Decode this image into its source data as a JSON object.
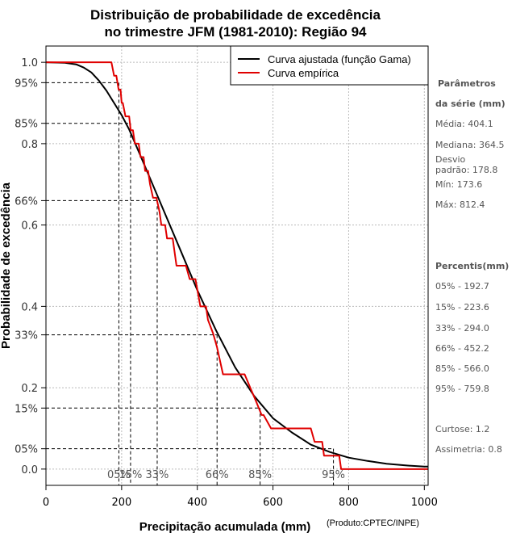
{
  "chart_data": {
    "type": "line",
    "title": "Distribuição de probabilidade de excedência",
    "subtitle": "no trimestre JFM (1981-2010): Região 94",
    "xlabel": "Precipitação acumulada (mm)",
    "ylabel": "Probabilidade de excedência",
    "xlim": [
      0,
      1010
    ],
    "ylim": [
      -0.04,
      1.04
    ],
    "x_ticks": [
      0,
      200,
      400,
      600,
      800,
      1000
    ],
    "x_tick_labels": [
      "0",
      "200",
      "400",
      "600",
      "800",
      "1000"
    ],
    "y_ticks": [
      1.0,
      0.95,
      0.85,
      0.8,
      0.66,
      0.6,
      0.4,
      0.33,
      0.2,
      0.15,
      0.05,
      0.0
    ],
    "y_tick_labels": [
      "1.0",
      "95%",
      "85%",
      "0.8",
      "66%",
      "0.6",
      "0.4",
      "33%",
      "0.2",
      "15%",
      "05%",
      "0.0"
    ],
    "grid": true,
    "legend_position": "top-right",
    "legend": [
      "Curva ajustada (função Gama)",
      "Curva empírica"
    ],
    "series": [
      {
        "name": "Curva ajustada (função Gama)",
        "color": "#000000",
        "x": [
          0,
          50,
          80,
          100,
          120,
          140,
          160,
          180,
          200,
          220,
          250,
          300,
          350,
          400,
          450,
          500,
          550,
          600,
          650,
          700,
          750,
          800,
          850,
          900,
          950,
          1000,
          1010
        ],
        "y": [
          1.0,
          0.999,
          0.995,
          0.987,
          0.975,
          0.955,
          0.93,
          0.9,
          0.87,
          0.835,
          0.77,
          0.66,
          0.55,
          0.44,
          0.34,
          0.25,
          0.18,
          0.125,
          0.09,
          0.06,
          0.042,
          0.028,
          0.02,
          0.013,
          0.009,
          0.006,
          0.006
        ]
      },
      {
        "name": "Curva empírica",
        "color": "#e00000",
        "x": [
          0,
          173,
          180,
          186,
          192,
          197,
          200,
          203,
          210,
          214,
          220,
          224,
          230,
          235,
          245,
          250,
          258,
          262,
          270,
          275,
          283,
          292,
          300,
          305,
          315,
          320,
          335,
          345,
          370,
          380,
          395,
          408,
          423,
          428,
          442,
          452,
          468,
          495,
          525,
          540,
          555,
          570,
          575,
          595,
          610,
          700,
          710,
          730,
          735,
          745,
          760,
          775,
          780,
          790,
          795,
          812,
          1010
        ],
        "y": [
          1.0,
          1.0,
          0.967,
          0.967,
          0.933,
          0.933,
          0.9,
          0.9,
          0.867,
          0.867,
          0.867,
          0.833,
          0.833,
          0.8,
          0.8,
          0.767,
          0.767,
          0.733,
          0.733,
          0.7,
          0.667,
          0.667,
          0.633,
          0.6,
          0.6,
          0.567,
          0.567,
          0.5,
          0.5,
          0.467,
          0.467,
          0.4,
          0.4,
          0.367,
          0.333,
          0.3,
          0.233,
          0.233,
          0.233,
          0.2,
          0.167,
          0.133,
          0.133,
          0.1,
          0.1,
          0.1,
          0.067,
          0.067,
          0.033,
          0.033,
          0.033,
          0.033,
          0.0,
          0.0,
          0.0,
          0.0,
          0.0
        ]
      }
    ],
    "percentile_markers": [
      {
        "label": "05%",
        "x": 192.7,
        "y": 0.95
      },
      {
        "label": "15%",
        "x": 223.6,
        "y": 0.85
      },
      {
        "label": "33%",
        "x": 294.0,
        "y": 0.66
      },
      {
        "label": "66%",
        "x": 452.2,
        "y": 0.33
      },
      {
        "label": "85%",
        "x": 566.0,
        "y": 0.15
      },
      {
        "label": "95%",
        "x": 759.8,
        "y": 0.05
      }
    ]
  },
  "sidebar": {
    "params_title_1": "Parâmetros",
    "params_title_2": "da série (mm)",
    "media": "Média: 404.1",
    "mediana": "Mediana: 364.5",
    "desvio_1": "Desvio",
    "desvio_2": "padrão: 178.8",
    "min": "Mín: 173.6",
    "max": "Máx: 812.4",
    "percentis_title": "Percentis(mm)",
    "percentis": [
      "05% - 192.7",
      "15% - 223.6",
      "33% - 294.0",
      "66% - 452.2",
      "85% - 566.0",
      "95% - 759.8"
    ],
    "curtose": "Curtose: 1.2",
    "assimetria": "Assimetria: 0.8"
  },
  "credit": "(Produto:CPTEC/INPE)"
}
